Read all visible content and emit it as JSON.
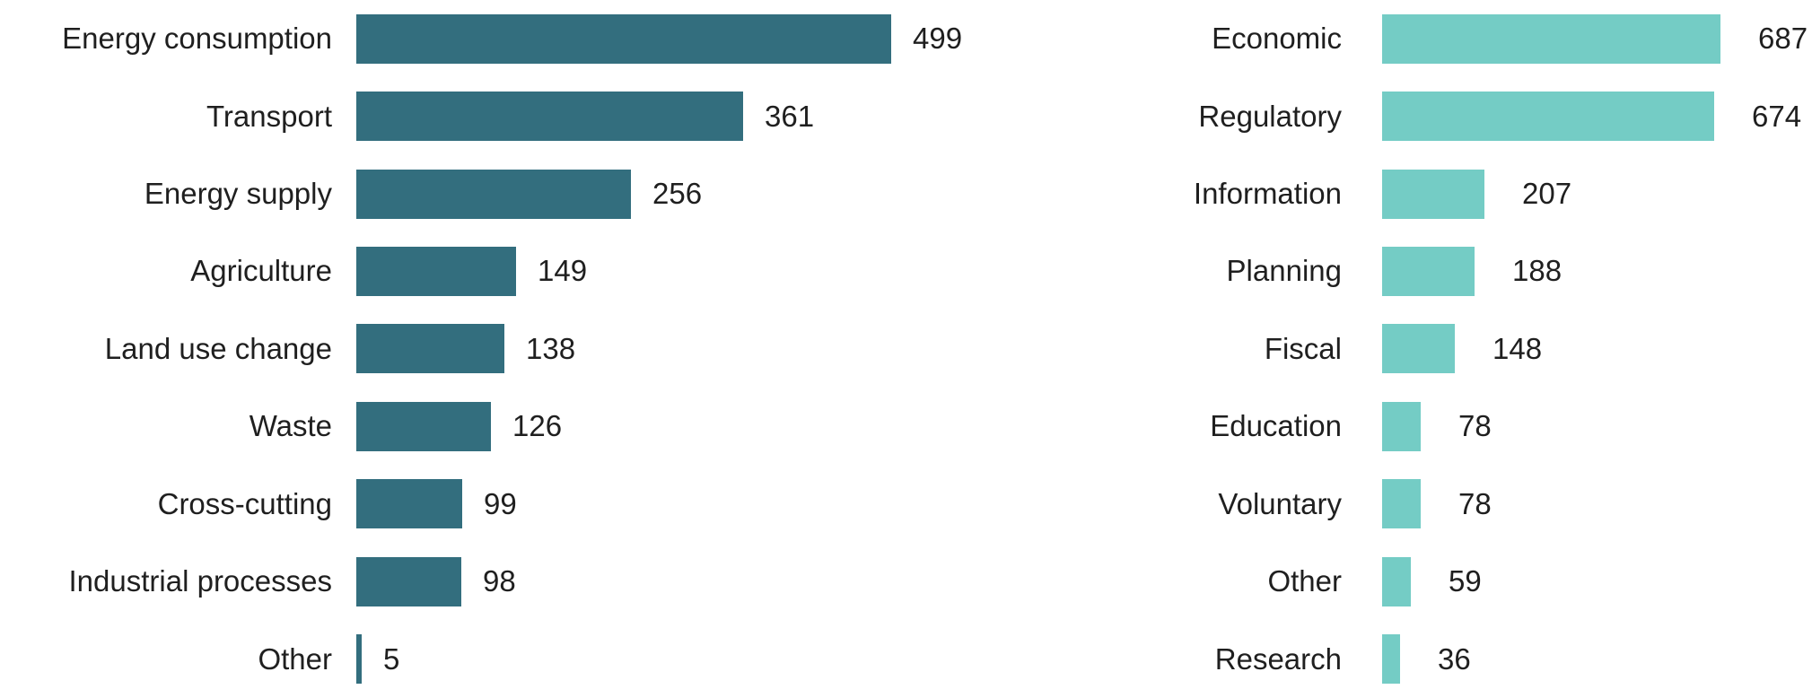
{
  "page": {
    "background": "#ffffff",
    "text_color": "#1f1f1f"
  },
  "chart_data": [
    {
      "type": "bar",
      "orientation": "horizontal",
      "categories": [
        "Energy consumption",
        "Transport",
        "Energy supply",
        "Agriculture",
        "Land use change",
        "Waste",
        "Cross-cutting",
        "Industrial processes",
        "Other"
      ],
      "values": [
        499,
        361,
        256,
        149,
        138,
        126,
        99,
        98,
        5
      ],
      "bar_color": "#336e7e",
      "value_labels": [
        "499",
        "361",
        "256",
        "149",
        "138",
        "126",
        "99",
        "98",
        "5"
      ],
      "xlim": [
        0,
        499
      ],
      "grid": false,
      "legend": false,
      "axis_ticks": false
    },
    {
      "type": "bar",
      "orientation": "horizontal",
      "categories": [
        "Economic",
        "Regulatory",
        "Information",
        "Planning",
        "Fiscal",
        "Education",
        "Voluntary",
        "Other",
        "Research"
      ],
      "values": [
        687,
        674,
        207,
        188,
        148,
        78,
        78,
        59,
        36
      ],
      "bar_color": "#74ccc5",
      "value_labels": [
        "687",
        "674",
        "207",
        "188",
        "148",
        "78",
        "78",
        "59",
        "36"
      ],
      "xlim": [
        0,
        687
      ],
      "grid": false,
      "legend": false,
      "axis_ticks": false
    }
  ]
}
